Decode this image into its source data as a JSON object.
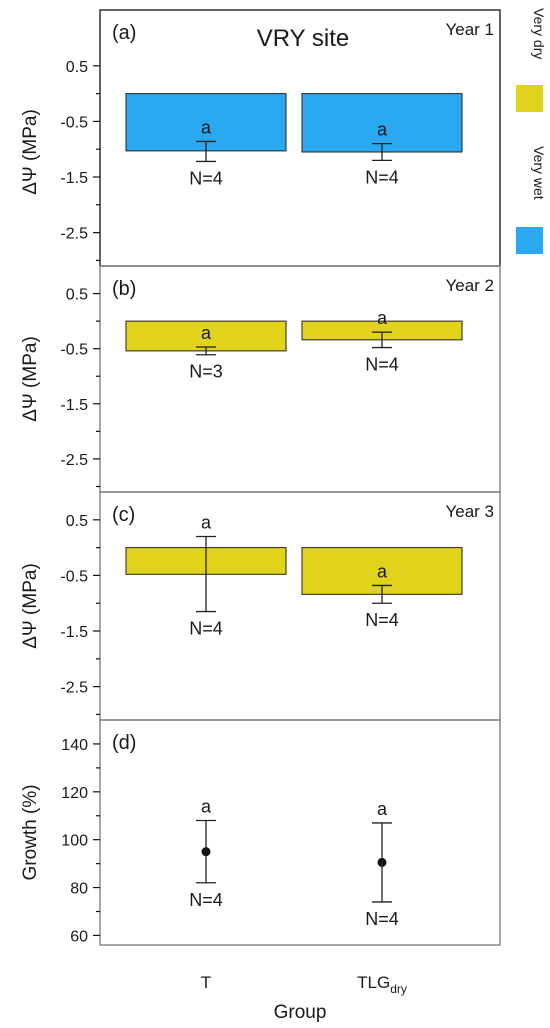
{
  "figure": {
    "title": "VRY site",
    "xlabel": "Group",
    "x_categories": [
      {
        "main": "T",
        "sub": ""
      },
      {
        "main": "TLG",
        "sub": "dry"
      }
    ]
  },
  "legend": [
    {
      "label": "Very dry",
      "color": "#e1d21c"
    },
    {
      "label": "Very wet",
      "color": "#2aa9f0"
    }
  ],
  "chart_data": [
    {
      "type": "bar",
      "panel": "(a)",
      "annotation": "Year 1",
      "ylabel": "ΔΨ (MPa)",
      "ylim": [
        -3.1,
        1.0
      ],
      "yticks": [
        0.5,
        -0.5,
        -1.5,
        -2.5
      ],
      "ytick_labels": [
        "0.5",
        "-0.5",
        "-1.5",
        "-2.5"
      ],
      "categories": [
        "T",
        "TLGdry"
      ],
      "values": [
        -1.03,
        -1.05
      ],
      "error_low": [
        -1.22,
        -1.2
      ],
      "error_high": [
        -0.86,
        -0.9
      ],
      "colors": [
        "#2aa9f0",
        "#2aa9f0"
      ],
      "letters": [
        "a",
        "a"
      ],
      "n_labels": [
        "N=4",
        "N=4"
      ]
    },
    {
      "type": "bar",
      "panel": "(b)",
      "annotation": "Year 2",
      "ylabel": "ΔΨ (MPa)",
      "ylim": [
        -3.1,
        1.0
      ],
      "yticks": [
        0.5,
        -0.5,
        -1.5,
        -2.5
      ],
      "ytick_labels": [
        "0.5",
        "-0.5",
        "-1.5",
        "-2.5"
      ],
      "categories": [
        "T",
        "TLGdry"
      ],
      "values": [
        -0.54,
        -0.34
      ],
      "error_low": [
        -0.61,
        -0.48
      ],
      "error_high": [
        -0.47,
        -0.2
      ],
      "colors": [
        "#e1d21c",
        "#e1d21c"
      ],
      "letters": [
        "a",
        "a"
      ],
      "n_labels": [
        "N=3",
        "N=4"
      ]
    },
    {
      "type": "bar",
      "panel": "(c)",
      "annotation": "Year 3",
      "ylabel": "ΔΨ (MPa)",
      "ylim": [
        -3.1,
        1.0
      ],
      "yticks": [
        0.5,
        -0.5,
        -1.5,
        -2.5
      ],
      "ytick_labels": [
        "0.5",
        "-0.5",
        "-1.5",
        "-2.5"
      ],
      "categories": [
        "T",
        "TLGdry"
      ],
      "values": [
        -0.48,
        -0.84
      ],
      "error_low": [
        -1.15,
        -1.0
      ],
      "error_high": [
        0.2,
        -0.68
      ],
      "colors": [
        "#e1d21c",
        "#e1d21c"
      ],
      "letters": [
        "a",
        "a"
      ],
      "n_labels": [
        "N=4",
        "N=4"
      ]
    },
    {
      "type": "scatter",
      "panel": "(d)",
      "annotation": "",
      "ylabel": "Growth (%)",
      "ylim": [
        56,
        150
      ],
      "yticks": [
        140,
        120,
        100,
        80,
        60
      ],
      "ytick_labels": [
        "140",
        "120",
        "100",
        "80",
        "60"
      ],
      "categories": [
        "T",
        "TLGdry"
      ],
      "values": [
        95,
        90.5
      ],
      "error_low": [
        82,
        74
      ],
      "error_high": [
        108,
        107
      ],
      "letters": [
        "a",
        "a"
      ],
      "n_labels": [
        "N=4",
        "N=4"
      ]
    }
  ]
}
